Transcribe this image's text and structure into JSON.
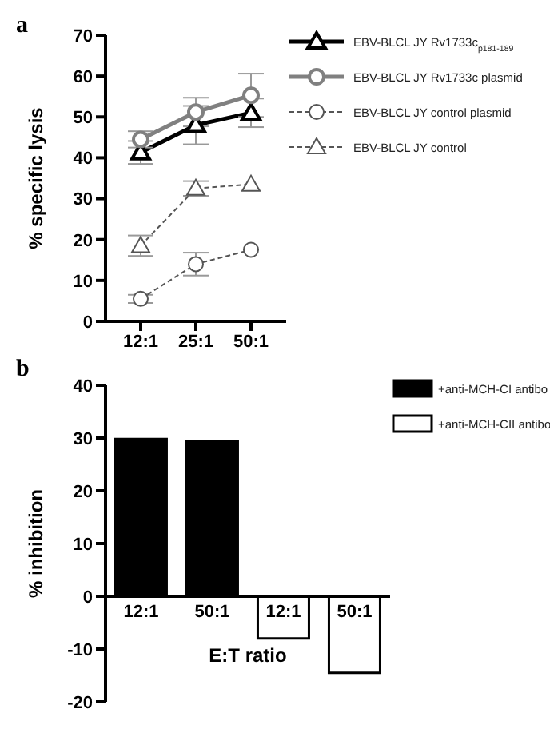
{
  "chart_data": [
    {
      "type": "line",
      "annotations": [
        "a"
      ],
      "ylabel": "% specific lysis",
      "categories": [
        "12:1",
        "25:1",
        "50:1"
      ],
      "ylim": [
        0,
        70
      ],
      "yticks": [
        0,
        10,
        20,
        30,
        40,
        50,
        60,
        70
      ],
      "legend": "top right",
      "series": [
        {
          "name": "EBV-BLCL JY Rv1733c$_{p181-189}$",
          "color": "#000000",
          "values": [
            41.3,
            48,
            51
          ],
          "errors": [
            2.8,
            4.7,
            3.5
          ],
          "marker": "triangle",
          "line_style": "solid"
        },
        {
          "name": "EBV-BLCL JY Rv1733c plasmid",
          "color": "#808080",
          "values": [
            44.5,
            51.2,
            55.3
          ],
          "errors": [
            2,
            3.5,
            5.3
          ],
          "marker": "circle",
          "line_style": "solid"
        },
        {
          "name": "EBV-BLCL JY control plasmid",
          "color": "#555555",
          "values": [
            5.5,
            14,
            17.5
          ],
          "errors": [
            1,
            2.8,
            null
          ],
          "marker": "circle",
          "line_style": "dashed"
        },
        {
          "name": "EBV-BLCL JY control",
          "color": "#555555",
          "values": [
            18.5,
            32.5,
            33.5
          ],
          "errors": [
            2.5,
            1.8,
            null
          ],
          "marker": "triangle",
          "line_style": "dashed"
        }
      ]
    },
    {
      "type": "bar",
      "annotations": [
        "b"
      ],
      "ylabel": "% inhibition",
      "xlabel": "E:T ratio",
      "categories": [
        "12:1",
        "50:1",
        "12:1",
        "50:1"
      ],
      "ylim": [
        -20,
        40
      ],
      "yticks": [
        -20,
        -10,
        0,
        10,
        20,
        30,
        40
      ],
      "legend": "top right",
      "stacked": true,
      "series": [
        {
          "name": "+anti-MCH-CI antibo",
          "color": "#000000",
          "values": [
            29.8,
            29.4,
            null,
            null
          ]
        },
        {
          "name": "+anti-MCH-CII antibo",
          "color": "#ffffff",
          "values": [
            null,
            null,
            -8,
            -14.5
          ]
        }
      ]
    }
  ]
}
